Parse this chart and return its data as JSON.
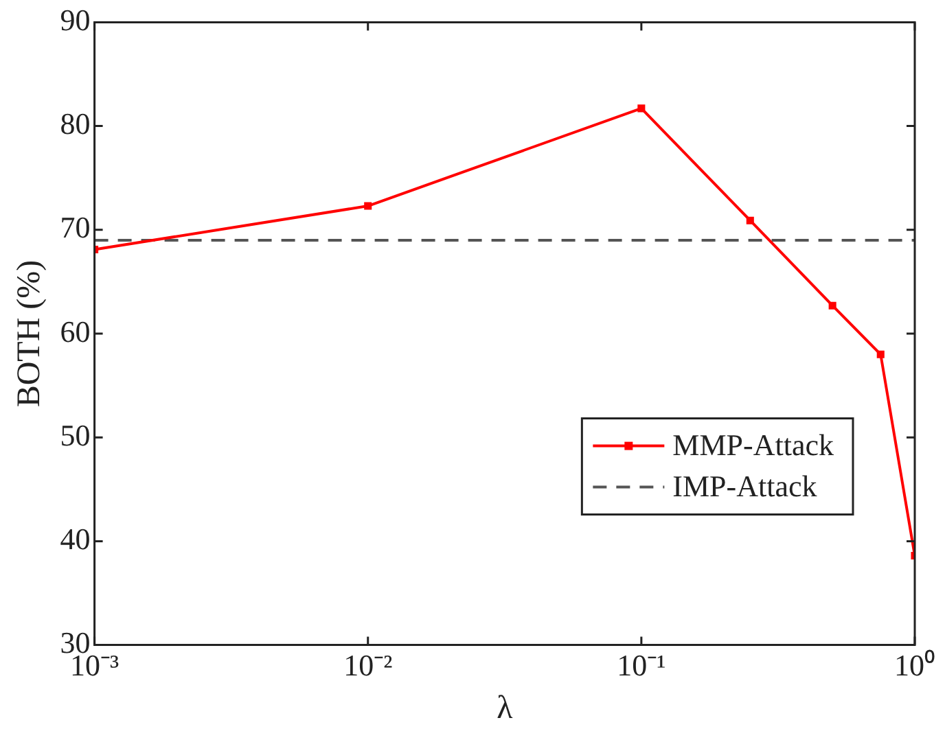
{
  "chart_data": {
    "type": "line",
    "xlabel": "λ",
    "ylabel": "BOTH (%)",
    "log": "x",
    "grid": false,
    "legend": "bottom right",
    "xlim": [
      0.001,
      1
    ],
    "xticks": [
      {
        "value": 0.001,
        "label": "10⁻³"
      },
      {
        "value": 0.01,
        "label": "10⁻²"
      },
      {
        "value": 0.1,
        "label": "10⁻¹"
      },
      {
        "value": 1,
        "label": "10⁰"
      }
    ],
    "ylim": [
      30,
      90
    ],
    "yticks": [
      30,
      40,
      50,
      60,
      70,
      80,
      90
    ],
    "series": [
      {
        "name": "MMP-Attack",
        "color": "#ff0000",
        "x": [
          0.001,
          0.01,
          0.1,
          0.25,
          0.5,
          0.75,
          1
        ],
        "values": [
          68.1,
          72.3,
          81.7,
          70.9,
          62.7,
          58.0,
          38.6
        ],
        "marker": "square",
        "line_style": "solid"
      },
      {
        "name": "IMP-Attack",
        "color": "#555555",
        "x": [
          0.001,
          1
        ],
        "values": [
          69.0,
          69.0
        ],
        "marker": "none",
        "line_style": "dashed"
      }
    ]
  }
}
